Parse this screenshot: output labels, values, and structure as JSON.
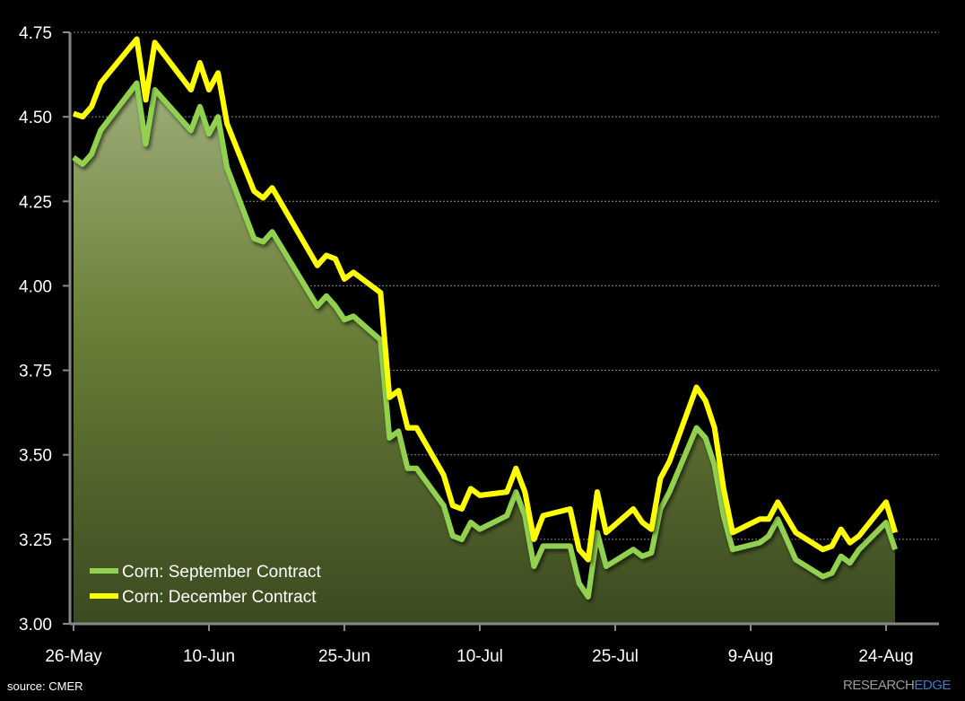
{
  "chart_data": {
    "type": "line",
    "title": "",
    "xlabel": "",
    "ylabel": "",
    "ylim": [
      3.0,
      4.75
    ],
    "yticks": [
      "3.00",
      "3.25",
      "3.50",
      "3.75",
      "4.00",
      "4.25",
      "4.50",
      "4.75"
    ],
    "xticks": [
      "26-May",
      "10-Jun",
      "25-Jun",
      "10-Jul",
      "25-Jul",
      "9-Aug",
      "24-Aug"
    ],
    "grid": true,
    "legend_position": "bottom-left",
    "x": [
      "26-May",
      "27-May",
      "28-May",
      "29-May",
      "2-Jun",
      "3-Jun",
      "4-Jun",
      "8-Jun",
      "9-Jun",
      "10-Jun",
      "11-Jun",
      "12-Jun",
      "15-Jun",
      "16-Jun",
      "17-Jun",
      "22-Jun",
      "23-Jun",
      "24-Jun",
      "25-Jun",
      "26-Jun",
      "29-Jun",
      "30-Jun",
      "1-Jul",
      "2-Jul",
      "3-Jul",
      "6-Jul",
      "7-Jul",
      "8-Jul",
      "9-Jul",
      "10-Jul",
      "13-Jul",
      "14-Jul",
      "15-Jul",
      "16-Jul",
      "17-Jul",
      "20-Jul",
      "21-Jul",
      "22-Jul",
      "23-Jul",
      "24-Jul",
      "27-Jul",
      "28-Jul",
      "29-Jul",
      "30-Jul",
      "31-Jul",
      "3-Aug",
      "4-Aug",
      "5-Aug",
      "6-Aug",
      "7-Aug",
      "10-Aug",
      "11-Aug",
      "12-Aug",
      "14-Aug",
      "17-Aug",
      "18-Aug",
      "19-Aug",
      "20-Aug",
      "21-Aug",
      "24-Aug",
      "25-Aug"
    ],
    "series": [
      {
        "name": "Corn: September Contract",
        "color": "#92d050",
        "area": true,
        "values": [
          4.38,
          4.36,
          4.39,
          4.46,
          4.6,
          4.42,
          4.58,
          4.46,
          4.53,
          4.45,
          4.5,
          4.35,
          4.14,
          4.13,
          4.16,
          3.94,
          3.97,
          3.94,
          3.9,
          3.91,
          3.84,
          3.55,
          3.57,
          3.46,
          3.46,
          3.35,
          3.26,
          3.25,
          3.3,
          3.28,
          3.32,
          3.39,
          3.32,
          3.17,
          3.23,
          3.23,
          3.12,
          3.08,
          3.27,
          3.17,
          3.22,
          3.2,
          3.21,
          3.34,
          3.39,
          3.58,
          3.55,
          3.47,
          3.32,
          3.22,
          3.24,
          3.26,
          3.31,
          3.19,
          3.14,
          3.15,
          3.2,
          3.18,
          3.22,
          3.3,
          3.22
        ]
      },
      {
        "name": "Corn: December Contract",
        "color": "#ffff00",
        "area": false,
        "values": [
          4.51,
          4.5,
          4.53,
          4.6,
          4.73,
          4.55,
          4.72,
          4.58,
          4.66,
          4.58,
          4.63,
          4.48,
          4.28,
          4.26,
          4.29,
          4.06,
          4.09,
          4.08,
          4.02,
          4.04,
          3.98,
          3.67,
          3.69,
          3.58,
          3.58,
          3.44,
          3.35,
          3.34,
          3.4,
          3.38,
          3.39,
          3.46,
          3.39,
          3.25,
          3.32,
          3.34,
          3.22,
          3.19,
          3.39,
          3.27,
          3.34,
          3.3,
          3.28,
          3.43,
          3.48,
          3.7,
          3.66,
          3.58,
          3.4,
          3.27,
          3.31,
          3.31,
          3.36,
          3.27,
          3.22,
          3.23,
          3.28,
          3.24,
          3.26,
          3.36,
          3.27
        ]
      }
    ]
  },
  "footer": {
    "source": "source: CMER",
    "logo_left": "RESEARCH",
    "logo_right": "EDGE"
  }
}
